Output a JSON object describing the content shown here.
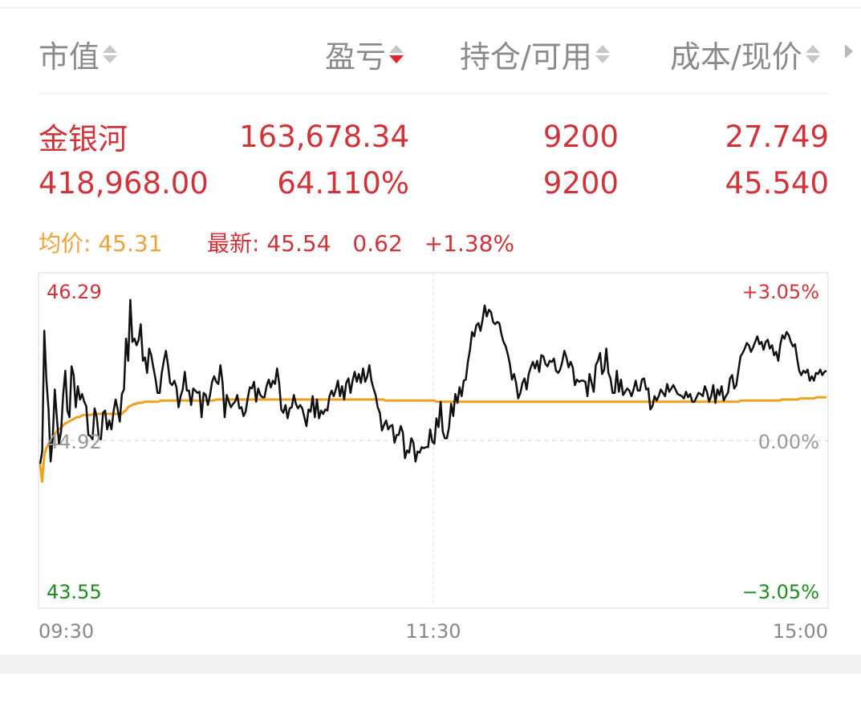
{
  "header": {
    "col1": "市值",
    "col2": "盈亏",
    "col3": "持仓/可用",
    "col4": "成本/现价"
  },
  "holding": {
    "name": "金银河",
    "profit": "163,678.34",
    "position": "9200",
    "cost": "27.749",
    "market_value": "418,968.00",
    "profit_pct": "64.110%",
    "available": "9200",
    "price": "45.540"
  },
  "quote": {
    "avg_label": "均价:",
    "avg_value": "45.31",
    "latest_label": "最新:",
    "latest_value": "45.54",
    "change": "0.62",
    "change_pct": "+1.38%"
  },
  "colors": {
    "up": "#d0343a",
    "down": "#1b8f1b",
    "avg_line": "#f0a21e",
    "price_line": "#111111",
    "header_text": "#8a8a8a",
    "avg_text": "#eea23a"
  },
  "chart_data": {
    "type": "line",
    "ylim": [
      43.55,
      46.29
    ],
    "y_labels": {
      "top": "46.29",
      "mid": "44.92",
      "bottom": "43.55"
    },
    "pct_labels": {
      "top": "+3.05%",
      "mid": "0.00%",
      "bottom": "−3.05%"
    },
    "time_labels": [
      "09:30",
      "11:30",
      "15:00"
    ],
    "series": [
      {
        "name": "最新",
        "values": [
          44.71,
          44.82,
          45.91,
          45.47,
          45.2,
          44.73,
          44.94,
          45.38,
          45.12,
          44.89,
          45.0,
          45.33,
          45.55,
          45.19,
          45.13,
          45.59,
          45.51,
          45.22,
          45.41,
          45.29,
          45.34,
          45.27,
          45.23,
          44.97,
          44.96,
          44.93,
          45.21,
          45.13,
          44.94,
          44.93,
          45.17,
          45.19,
          45.02,
          45.1,
          45.02,
          45.18,
          45.29,
          45.2,
          45.09,
          45.34,
          45.38,
          45.84,
          45.64,
          46.19,
          45.81,
          45.84,
          45.78,
          45.83,
          45.97,
          45.64,
          45.67,
          45.53,
          45.75,
          45.69,
          45.58,
          45.48,
          45.35,
          45.35,
          45.53,
          45.64,
          45.73,
          45.6,
          45.44,
          45.42,
          45.46,
          45.4,
          45.22,
          45.32,
          45.38,
          45.54,
          45.37,
          45.37,
          45.24,
          45.39,
          45.37,
          45.35,
          45.36,
          45.13,
          45.35,
          45.33,
          45.24,
          45.33,
          45.45,
          45.5,
          45.45,
          45.43,
          45.6,
          45.44,
          45.13,
          45.33,
          45.27,
          45.22,
          45.25,
          45.27,
          45.33,
          45.21,
          45.22,
          45.14,
          45.18,
          45.3,
          45.4,
          45.39,
          45.45,
          45.27,
          45.39,
          45.33,
          45.31,
          45.31,
          45.41,
          45.47,
          45.4,
          45.46,
          45.43,
          45.57,
          45.44,
          45.2,
          45.17,
          45.24,
          45.12,
          45.21,
          45.22,
          45.33,
          45.25,
          45.21,
          45.24,
          45.21,
          45.13,
          45.05,
          45.2,
          45.18,
          45.32,
          45.13,
          45.29,
          45.12,
          45.19,
          45.16,
          45.2,
          45.19,
          45.32,
          45.37,
          45.32,
          45.38,
          45.46,
          45.32,
          45.41,
          45.29,
          45.44,
          45.48,
          45.35,
          45.46,
          45.54,
          45.45,
          45.52,
          45.44,
          45.57,
          45.45,
          45.5,
          45.6,
          45.46,
          45.39,
          45.33,
          45.22,
          45.17,
          45.01,
          45.06,
          45.1,
          45.02,
          45.05,
          45.06,
          44.9,
          44.97,
          44.97,
          45.05,
          44.99,
          44.76,
          44.83,
          44.81,
          44.94,
          44.9,
          44.73,
          44.82,
          44.81,
          44.86,
          44.85,
          44.86,
          44.86,
          45.02,
          44.91,
          44.89,
          45.12,
          45.04,
          45.27,
          45.0,
          44.94,
          44.94,
          45.04,
          45.25,
          45.14,
          45.34,
          45.26,
          45.4,
          45.32,
          45.46,
          45.47,
          45.63,
          45.74,
          45.9,
          45.86,
          45.96,
          45.98,
          45.91,
          46.01,
          46.14,
          46.04,
          46.1,
          46.08,
          45.99,
          45.97,
          45.99,
          45.98,
          45.88,
          45.81,
          45.77,
          45.7,
          45.61,
          45.47,
          45.52,
          45.44,
          45.3,
          45.35,
          45.44,
          45.48,
          45.38,
          45.52,
          45.58,
          45.63,
          45.57,
          45.64,
          45.54,
          45.69,
          45.68,
          45.61,
          45.59,
          45.64,
          45.63,
          45.66,
          45.55,
          45.53,
          45.56,
          45.63,
          45.73,
          45.67,
          45.58,
          45.63,
          45.58,
          45.42,
          45.47,
          45.45,
          45.46,
          45.46,
          45.45,
          45.32,
          45.52,
          45.44,
          45.36,
          45.6,
          45.64,
          45.71,
          45.52,
          45.56,
          45.75,
          45.53,
          45.48,
          45.35,
          45.35,
          45.55,
          45.36,
          45.47,
          45.33,
          45.36,
          45.39,
          45.37,
          45.32,
          45.38,
          45.46,
          45.37,
          45.37,
          45.47,
          45.48,
          45.38,
          45.39,
          45.2,
          45.23,
          45.32,
          45.28,
          45.32,
          45.38,
          45.35,
          45.32,
          45.43,
          45.36,
          45.39,
          45.42,
          45.38,
          45.34,
          45.33,
          45.32,
          45.3,
          45.36,
          45.31,
          45.34,
          45.27,
          45.27,
          45.31,
          45.35,
          45.34,
          45.32,
          45.41,
          45.36,
          45.27,
          45.32,
          45.42,
          45.26,
          45.38,
          45.33,
          45.41,
          45.28,
          45.32,
          45.35,
          45.48,
          45.51,
          45.39,
          45.42,
          45.55,
          45.68,
          45.71,
          45.75,
          45.8,
          45.78,
          45.72,
          45.76,
          45.81,
          45.86,
          45.79,
          45.81,
          45.74,
          45.81,
          45.83,
          45.75,
          45.78,
          45.69,
          45.72,
          45.64,
          45.79,
          45.87,
          45.84,
          45.9,
          45.87,
          45.81,
          45.77,
          45.79,
          45.66,
          45.55,
          45.51,
          45.55,
          45.53,
          45.56,
          45.46,
          45.5,
          45.46,
          45.53,
          45.52,
          45.56,
          45.51,
          45.54,
          45.55
        ]
      },
      {
        "name": "均价",
        "values": [
          44.71,
          44.54,
          44.78,
          44.85,
          44.88,
          44.9,
          44.93,
          44.97,
          45.0,
          45.02,
          45.03,
          45.05,
          45.07,
          45.08,
          45.09,
          45.1,
          45.11,
          45.12,
          45.13,
          45.13,
          45.14,
          45.15,
          45.15,
          45.15,
          45.15,
          45.15,
          45.16,
          45.16,
          45.16,
          45.16,
          45.16,
          45.16,
          45.16,
          45.16,
          45.16,
          45.16,
          45.16,
          45.16,
          45.16,
          45.16,
          45.16,
          45.18,
          45.19,
          45.22,
          45.23,
          45.24,
          45.25,
          45.25,
          45.26,
          45.26,
          45.26,
          45.27,
          45.27,
          45.27,
          45.27,
          45.27,
          45.27,
          45.27,
          45.27,
          45.28,
          45.28,
          45.28,
          45.28,
          45.28,
          45.28,
          45.28,
          45.28,
          45.28,
          45.28,
          45.28,
          45.28,
          45.28,
          45.28,
          45.28,
          45.28,
          45.28,
          45.28,
          45.28,
          45.28,
          45.28,
          45.28,
          45.28,
          45.28,
          45.28,
          45.28,
          45.28,
          45.29,
          45.29,
          45.29,
          45.29,
          45.29,
          45.29,
          45.29,
          45.29,
          45.29,
          45.29,
          45.29,
          45.29,
          45.29,
          45.29,
          45.29,
          45.29,
          45.29,
          45.29,
          45.29,
          45.29,
          45.29,
          45.29,
          45.29,
          45.29,
          45.29,
          45.29,
          45.29,
          45.29,
          45.29,
          45.29,
          45.29,
          45.29,
          45.29,
          45.29,
          45.29,
          45.29,
          45.29,
          45.29,
          45.29,
          45.29,
          45.29,
          45.29,
          45.29,
          45.29,
          45.29,
          45.29,
          45.29,
          45.29,
          45.29,
          45.29,
          45.29,
          45.29,
          45.29,
          45.29,
          45.29,
          45.29,
          45.29,
          45.29,
          45.29,
          45.29,
          45.29,
          45.29,
          45.29,
          45.29,
          45.29,
          45.29,
          45.29,
          45.29,
          45.29,
          45.29,
          45.29,
          45.29,
          45.29,
          45.29,
          45.29,
          45.29,
          45.29,
          45.29,
          45.29,
          45.29,
          45.29,
          45.29,
          45.29,
          45.28,
          45.28,
          45.28,
          45.28,
          45.28,
          45.28,
          45.28,
          45.28,
          45.28,
          45.28,
          45.28,
          45.28,
          45.28,
          45.28,
          45.28,
          45.28,
          45.28,
          45.28,
          45.28,
          45.28,
          45.28,
          45.28,
          45.28,
          45.28,
          45.28,
          45.27,
          45.27,
          45.27,
          45.27,
          45.27,
          45.27,
          45.27,
          45.27,
          45.27,
          45.27,
          45.27,
          45.27,
          45.27,
          45.27,
          45.27,
          45.27,
          45.27,
          45.27,
          45.27,
          45.27,
          45.27,
          45.27,
          45.27,
          45.27,
          45.27,
          45.27,
          45.27,
          45.27,
          45.27,
          45.27,
          45.27,
          45.27,
          45.27,
          45.27,
          45.27,
          45.27,
          45.27,
          45.27,
          45.27,
          45.27,
          45.27,
          45.27,
          45.27,
          45.27,
          45.27,
          45.27,
          45.27,
          45.27,
          45.27,
          45.27,
          45.27,
          45.27,
          45.27,
          45.27,
          45.27,
          45.27,
          45.27,
          45.27,
          45.27,
          45.27,
          45.27,
          45.27,
          45.27,
          45.27,
          45.27,
          45.27,
          45.27,
          45.27,
          45.27,
          45.27,
          45.27,
          45.27,
          45.27,
          45.27,
          45.27,
          45.27,
          45.27,
          45.27,
          45.27,
          45.27,
          45.27,
          45.27,
          45.27,
          45.27,
          45.27,
          45.27,
          45.27,
          45.27,
          45.27,
          45.27,
          45.27,
          45.27,
          45.27,
          45.27,
          45.27,
          45.27,
          45.27,
          45.27,
          45.27,
          45.27,
          45.27,
          45.27,
          45.27,
          45.27,
          45.27,
          45.27,
          45.27,
          45.27,
          45.27,
          45.27,
          45.27,
          45.27,
          45.27,
          45.27,
          45.27,
          45.27,
          45.27,
          45.27,
          45.27,
          45.27,
          45.27,
          45.27,
          45.27,
          45.27,
          45.27,
          45.27,
          45.27,
          45.27,
          45.27,
          45.27,
          45.27,
          45.27,
          45.27,
          45.27,
          45.27,
          45.27,
          45.27,
          45.27,
          45.27,
          45.27,
          45.27,
          45.27,
          45.27,
          45.27,
          45.27,
          45.27,
          45.27,
          45.27,
          45.27,
          45.28,
          45.28,
          45.28,
          45.28,
          45.28,
          45.28,
          45.28,
          45.28,
          45.28,
          45.28,
          45.28,
          45.28,
          45.28,
          45.28,
          45.28,
          45.28,
          45.28,
          45.28,
          45.28,
          45.28,
          45.29,
          45.29,
          45.29,
          45.29,
          45.29,
          45.29,
          45.29,
          45.29,
          45.29,
          45.3,
          45.3,
          45.3,
          45.3,
          45.3,
          45.3,
          45.3,
          45.3,
          45.31,
          45.31,
          45.31,
          45.31,
          45.31,
          45.31
        ]
      }
    ]
  }
}
